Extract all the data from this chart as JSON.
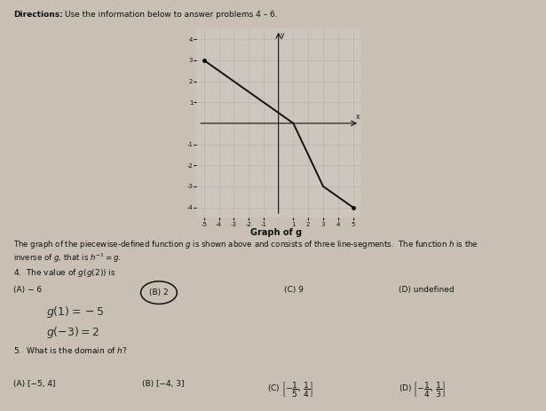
{
  "graph_title": "Graph of g",
  "bg_color": "#c8c0b4",
  "graph_segments": [
    [
      [
        -5,
        3
      ],
      [
        1,
        0
      ]
    ],
    [
      [
        1,
        0
      ],
      [
        3,
        -3
      ]
    ],
    [
      [
        3,
        -3
      ],
      [
        5,
        -4
      ]
    ]
  ],
  "graph_xlim": [
    -5.5,
    5.5
  ],
  "graph_ylim": [
    -4.5,
    4.5
  ],
  "graph_xticks": [
    -5,
    -4,
    -3,
    -2,
    -1,
    1,
    2,
    3,
    4,
    5
  ],
  "graph_yticks": [
    -4,
    -3,
    -2,
    -1,
    1,
    2,
    3,
    4
  ],
  "line_color": "#111111",
  "axis_color": "#111111",
  "grid_color": "#aaaaaa"
}
